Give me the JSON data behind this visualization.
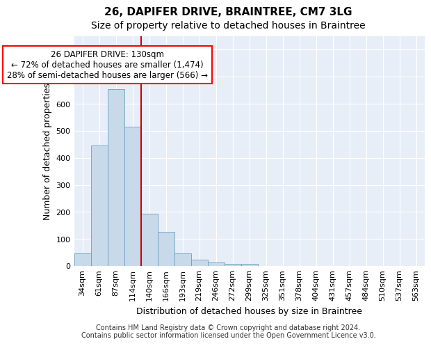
{
  "title": "26, DAPIFER DRIVE, BRAINTREE, CM7 3LG",
  "subtitle": "Size of property relative to detached houses in Braintree",
  "xlabel": "Distribution of detached houses by size in Braintree",
  "ylabel": "Number of detached properties",
  "bar_labels": [
    "34sqm",
    "61sqm",
    "87sqm",
    "114sqm",
    "140sqm",
    "166sqm",
    "193sqm",
    "219sqm",
    "246sqm",
    "272sqm",
    "299sqm",
    "325sqm",
    "351sqm",
    "378sqm",
    "404sqm",
    "431sqm",
    "457sqm",
    "484sqm",
    "510sqm",
    "537sqm",
    "563sqm"
  ],
  "bar_values": [
    47,
    445,
    655,
    515,
    193,
    125,
    47,
    23,
    12,
    8,
    8,
    0,
    0,
    0,
    0,
    0,
    0,
    0,
    0,
    0,
    0
  ],
  "bar_color": "#c8d9ea",
  "bar_edgecolor": "#6aa0c0",
  "vline_x": 4.0,
  "annotation_text": "26 DAPIFER DRIVE: 130sqm\n← 72% of detached houses are smaller (1,474)\n28% of semi-detached houses are larger (566) →",
  "annotation_box_color": "white",
  "annotation_box_edgecolor": "red",
  "vline_color": "#cc0000",
  "ylim": [
    0,
    850
  ],
  "yticks": [
    0,
    100,
    200,
    300,
    400,
    500,
    600,
    700,
    800
  ],
  "background_color": "#e8eef8",
  "footer_line1": "Contains HM Land Registry data © Crown copyright and database right 2024.",
  "footer_line2": "Contains public sector information licensed under the Open Government Licence v3.0.",
  "title_fontsize": 11,
  "subtitle_fontsize": 10,
  "label_fontsize": 9,
  "tick_fontsize": 8,
  "annotation_fontsize": 8.5,
  "ylabel_fontsize": 9
}
